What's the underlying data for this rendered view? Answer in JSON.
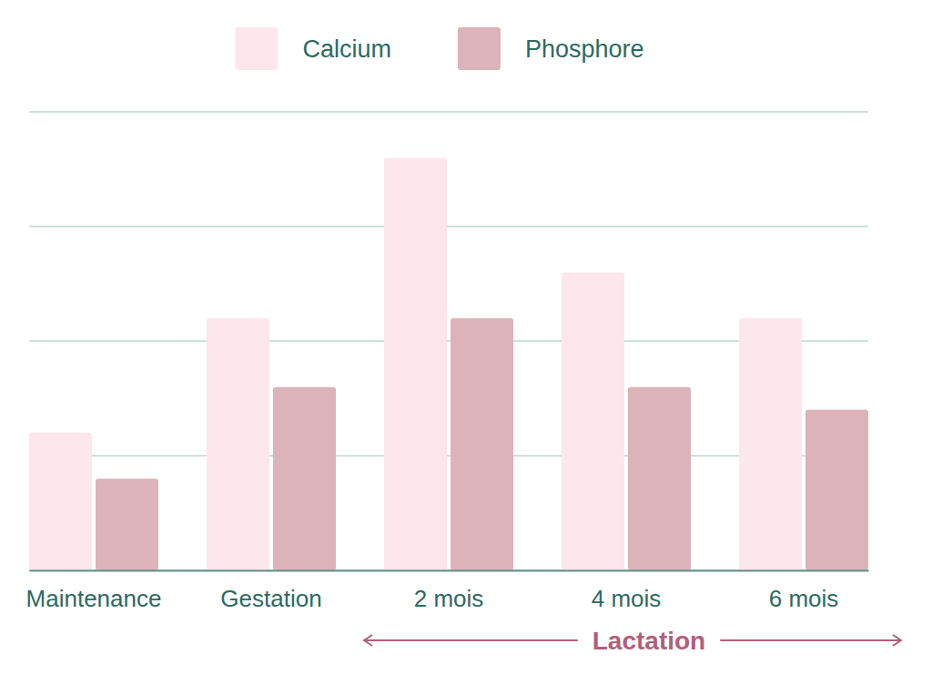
{
  "chart_data": {
    "type": "bar",
    "categories": [
      "Maintenance",
      "Gestation",
      "2 mois",
      "4 mois",
      "6 mois"
    ],
    "series": [
      {
        "name": "Calcium",
        "color": "#fde6ec",
        "values": [
          1.2,
          2.2,
          3.6,
          2.6,
          2.2
        ]
      },
      {
        "name": "Phosphore",
        "color": "#dcb3bb",
        "values": [
          0.8,
          1.6,
          2.2,
          1.6,
          1.4
        ]
      }
    ],
    "ylim": [
      0,
      4
    ],
    "yticks": [
      0,
      1,
      2,
      3,
      4
    ],
    "grid": true,
    "legend": "top",
    "tick_labels": "x",
    "annotations": [
      {
        "text": "Lactation"
      }
    ]
  }
}
